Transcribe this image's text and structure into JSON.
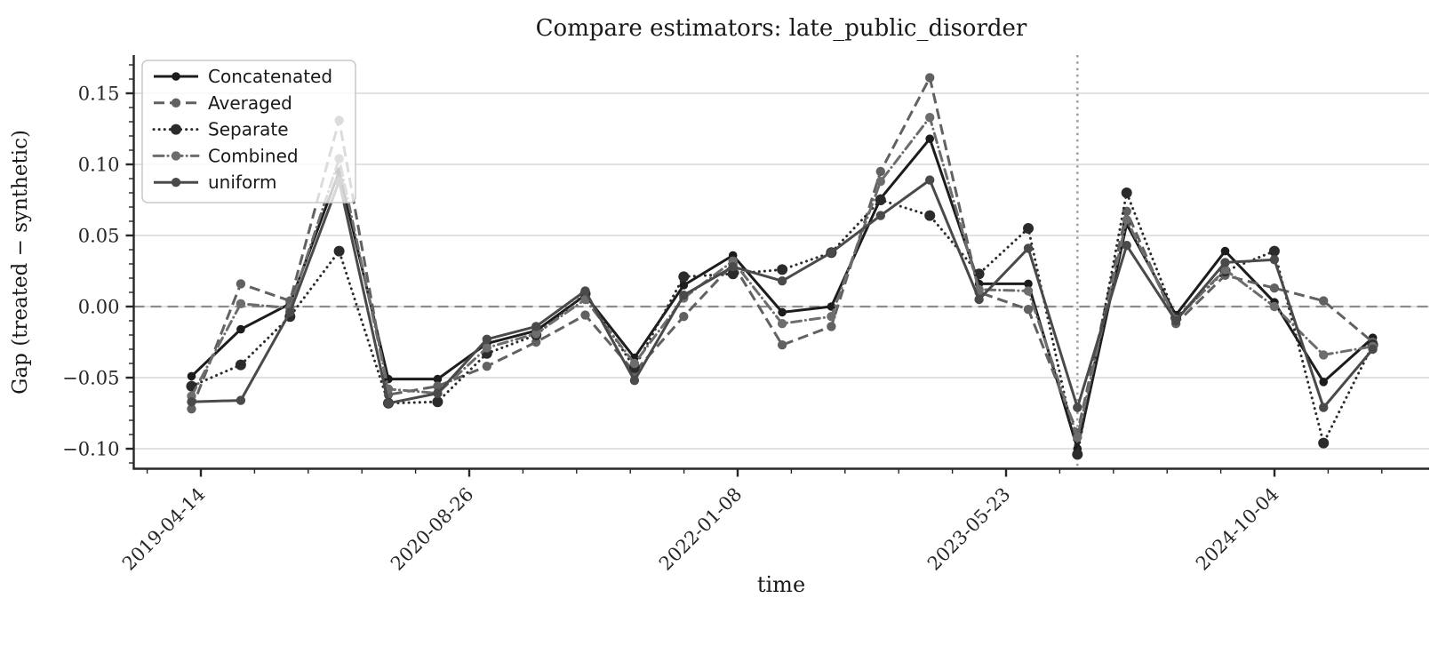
{
  "title": "Compare estimators: late_public_disorder",
  "xlabel": "time",
  "ylabel": "Gap (treated − synthetic)",
  "colors": {
    "concatenated": "#1c1c1c",
    "averaged": "#616161",
    "separate": "#2b2b2b",
    "combined": "#6d6d6d",
    "uniform": "#4a4a4a",
    "gridline": "#e2e2e2",
    "zero_line": "#8c8c8c",
    "event_line": "#999999",
    "axis": "#262626",
    "legend_border": "#cbcbcb"
  },
  "chart_data": {
    "type": "line",
    "title": "Compare estimators: late_public_disorder",
    "xlabel": "time",
    "ylabel": "Gap (treated − synthetic)",
    "grid": "horizontal",
    "legend_position": "upper left",
    "x_tick_labels": [
      "2019-04-14",
      "2020-08-26",
      "2022-01-08",
      "2023-05-23",
      "2024-10-04"
    ],
    "y_tick_labels": [
      "0.15",
      "0.10",
      "0.05",
      "0.00",
      "−0.05",
      "−0.10"
    ],
    "y_tick_values": [
      0.15,
      0.1,
      0.05,
      0.0,
      -0.05,
      -0.1
    ],
    "ylim": [
      -0.114,
      0.177
    ],
    "n_points": 25,
    "zero_reference_line": 0.0,
    "event_line_at_point_index": 18,
    "series": [
      {
        "name": "Concatenated",
        "style": "solid",
        "color": "#1c1c1c",
        "values": [
          -0.049,
          -0.016,
          0.002,
          0.095,
          -0.051,
          -0.051,
          -0.026,
          -0.017,
          0.008,
          -0.036,
          0.015,
          0.036,
          -0.004,
          0.0,
          0.076,
          0.118,
          0.016,
          0.016,
          -0.1,
          0.058,
          -0.006,
          0.039,
          0.003,
          -0.053,
          -0.022
        ]
      },
      {
        "name": "Averaged",
        "style": "dashed",
        "color": "#616161",
        "values": [
          -0.072,
          0.016,
          0.004,
          0.131,
          -0.062,
          -0.056,
          -0.042,
          -0.025,
          -0.006,
          -0.046,
          -0.007,
          0.03,
          -0.027,
          -0.014,
          0.095,
          0.161,
          0.01,
          -0.002,
          -0.089,
          0.067,
          -0.012,
          0.022,
          0.013,
          0.004,
          -0.025
        ]
      },
      {
        "name": "Separate",
        "style": "dotted",
        "color": "#2b2b2b",
        "values": [
          -0.056,
          -0.041,
          -0.007,
          0.039,
          -0.068,
          -0.067,
          -0.033,
          -0.02,
          0.009,
          -0.043,
          0.021,
          0.023,
          0.026,
          0.038,
          0.075,
          0.064,
          0.023,
          0.055,
          -0.104,
          0.08,
          -0.008,
          0.025,
          0.039,
          -0.096,
          -0.027
        ]
      },
      {
        "name": "Combined",
        "style": "dashdot",
        "color": "#6d6d6d",
        "values": [
          -0.063,
          0.002,
          -0.001,
          0.104,
          -0.058,
          -0.061,
          -0.029,
          -0.019,
          0.005,
          -0.04,
          0.006,
          0.032,
          -0.012,
          -0.007,
          0.088,
          0.133,
          0.012,
          0.011,
          -0.092,
          0.061,
          -0.009,
          0.026,
          0.0,
          -0.034,
          -0.028
        ]
      },
      {
        "name": "uniform",
        "style": "solid",
        "color": "#4a4a4a",
        "values": [
          -0.067,
          -0.066,
          -0.004,
          0.088,
          -0.068,
          -0.061,
          -0.023,
          -0.014,
          0.011,
          -0.052,
          0.008,
          0.028,
          0.018,
          0.038,
          0.064,
          0.089,
          0.005,
          0.041,
          -0.071,
          0.043,
          -0.01,
          0.031,
          0.033,
          -0.071,
          -0.03
        ]
      }
    ]
  }
}
